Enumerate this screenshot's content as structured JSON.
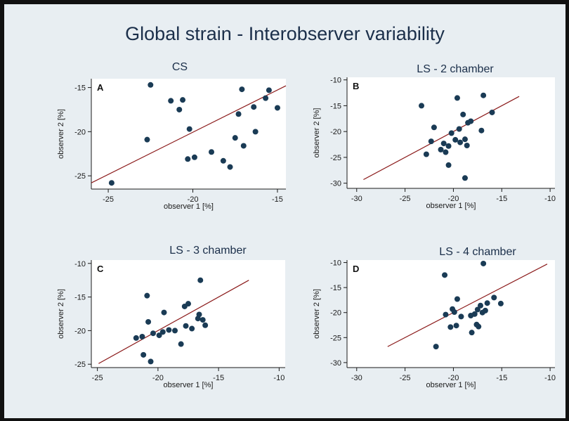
{
  "title": "Global strain - Interobserver variability",
  "colors": {
    "background": "#e8eef2",
    "plot_background": "#ffffff",
    "marker": "#1a3b55",
    "fit_line": "#8b1a1a",
    "text": "#1b2f4a"
  },
  "chart_data": [
    {
      "type": "scatter",
      "panel_letter": "A",
      "title": "CS",
      "xlabel": "observer 1 [%]",
      "ylabel": "observer 2 [%]",
      "xlim": [
        -26,
        -14.5
      ],
      "ylim": [
        -26.5,
        -14
      ],
      "xticks": [
        -25,
        -20,
        -15
      ],
      "yticks": [
        -15,
        -20,
        -25
      ],
      "grid": false,
      "points": [
        {
          "x": -24.8,
          "y": -25.8
        },
        {
          "x": -22.5,
          "y": -14.7
        },
        {
          "x": -22.7,
          "y": -20.9
        },
        {
          "x": -21.3,
          "y": -16.5
        },
        {
          "x": -20.8,
          "y": -17.5
        },
        {
          "x": -20.6,
          "y": -16.4
        },
        {
          "x": -20.2,
          "y": -19.7
        },
        {
          "x": -20.3,
          "y": -23.1
        },
        {
          "x": -19.9,
          "y": -22.9
        },
        {
          "x": -18.9,
          "y": -22.3
        },
        {
          "x": -18.2,
          "y": -23.3
        },
        {
          "x": -17.8,
          "y": -24.0
        },
        {
          "x": -17.5,
          "y": -20.7
        },
        {
          "x": -17.3,
          "y": -18.0
        },
        {
          "x": -17.1,
          "y": -15.2
        },
        {
          "x": -17.0,
          "y": -21.6
        },
        {
          "x": -16.4,
          "y": -17.2
        },
        {
          "x": -16.3,
          "y": -20.0
        },
        {
          "x": -15.7,
          "y": -16.2
        },
        {
          "x": -15.5,
          "y": -15.3
        },
        {
          "x": -15.0,
          "y": -17.3
        }
      ],
      "fit_line": {
        "x": [
          -26,
          -14.5
        ],
        "y": [
          -25.8,
          -14.8
        ]
      }
    },
    {
      "type": "scatter",
      "panel_letter": "B",
      "title": "LS - 2 chamber",
      "xlabel": "observer 1 [%]",
      "ylabel": "observer 2 [%]",
      "xlim": [
        -31,
        -9.5
      ],
      "ylim": [
        -31,
        -9.5
      ],
      "xticks": [
        -30,
        -25,
        -20,
        -15,
        -10
      ],
      "yticks": [
        -10,
        -15,
        -20,
        -25,
        -30
      ],
      "grid": false,
      "points": [
        {
          "x": -23.3,
          "y": -15.0
        },
        {
          "x": -22.3,
          "y": -21.9
        },
        {
          "x": -22.0,
          "y": -19.2
        },
        {
          "x": -22.8,
          "y": -24.4
        },
        {
          "x": -21.3,
          "y": -23.5
        },
        {
          "x": -21.0,
          "y": -22.3
        },
        {
          "x": -20.8,
          "y": -24.0
        },
        {
          "x": -20.5,
          "y": -26.5
        },
        {
          "x": -20.5,
          "y": -22.8
        },
        {
          "x": -20.2,
          "y": -20.3
        },
        {
          "x": -19.8,
          "y": -21.6
        },
        {
          "x": -19.6,
          "y": -13.5
        },
        {
          "x": -19.3,
          "y": -22.1
        },
        {
          "x": -19.4,
          "y": -19.5
        },
        {
          "x": -19.0,
          "y": -16.7
        },
        {
          "x": -18.8,
          "y": -21.5
        },
        {
          "x": -18.8,
          "y": -29.0
        },
        {
          "x": -18.5,
          "y": -18.3
        },
        {
          "x": -18.6,
          "y": -22.7
        },
        {
          "x": -18.2,
          "y": -18.0
        },
        {
          "x": -17.1,
          "y": -19.8
        },
        {
          "x": -16.9,
          "y": -13.0
        },
        {
          "x": -16.0,
          "y": -16.3
        }
      ],
      "fit_line": {
        "x": [
          -29.3,
          -13.2
        ],
        "y": [
          -29.3,
          -13.2
        ]
      }
    },
    {
      "type": "scatter",
      "panel_letter": "C",
      "title": "LS - 3 chamber",
      "xlabel": "observer 1 [%]",
      "ylabel": "observer 2 [%]",
      "xlim": [
        -25.5,
        -9.5
      ],
      "ylim": [
        -25.5,
        -9.5
      ],
      "xticks": [
        -25,
        -20,
        -15,
        -10
      ],
      "yticks": [
        -10,
        -15,
        -20,
        -25
      ],
      "grid": false,
      "points": [
        {
          "x": -21.8,
          "y": -21.1
        },
        {
          "x": -21.3,
          "y": -20.9
        },
        {
          "x": -21.2,
          "y": -23.6
        },
        {
          "x": -20.9,
          "y": -14.8
        },
        {
          "x": -20.8,
          "y": -18.7
        },
        {
          "x": -20.6,
          "y": -24.6
        },
        {
          "x": -20.4,
          "y": -20.4
        },
        {
          "x": -19.9,
          "y": -20.7
        },
        {
          "x": -19.6,
          "y": -20.2
        },
        {
          "x": -19.5,
          "y": -17.3
        },
        {
          "x": -19.1,
          "y": -19.9
        },
        {
          "x": -18.6,
          "y": -20.0
        },
        {
          "x": -18.1,
          "y": -22.0
        },
        {
          "x": -17.8,
          "y": -16.4
        },
        {
          "x": -17.7,
          "y": -19.3
        },
        {
          "x": -17.5,
          "y": -16.0
        },
        {
          "x": -17.2,
          "y": -19.7
        },
        {
          "x": -16.7,
          "y": -18.2
        },
        {
          "x": -16.6,
          "y": -17.6
        },
        {
          "x": -16.5,
          "y": -12.5
        },
        {
          "x": -16.3,
          "y": -18.4
        },
        {
          "x": -16.1,
          "y": -19.2
        }
      ],
      "fit_line": {
        "x": [
          -24.9,
          -12.5
        ],
        "y": [
          -24.9,
          -12.5
        ]
      }
    },
    {
      "type": "scatter",
      "panel_letter": "D",
      "title": "LS - 4 chamber",
      "xlabel": "observer 1 [%]",
      "ylabel": "observer 2 [%]",
      "xlim": [
        -31,
        -9.5
      ],
      "ylim": [
        -31,
        -9.5
      ],
      "xticks": [
        -30,
        -25,
        -20,
        -15,
        -10
      ],
      "yticks": [
        -10,
        -15,
        -20,
        -25,
        -30
      ],
      "grid": false,
      "points": [
        {
          "x": -21.8,
          "y": -26.8
        },
        {
          "x": -20.9,
          "y": -12.5
        },
        {
          "x": -20.8,
          "y": -20.4
        },
        {
          "x": -20.3,
          "y": -22.9
        },
        {
          "x": -20.1,
          "y": -19.3
        },
        {
          "x": -19.9,
          "y": -19.9
        },
        {
          "x": -19.7,
          "y": -22.6
        },
        {
          "x": -19.6,
          "y": -17.3
        },
        {
          "x": -19.2,
          "y": -20.8
        },
        {
          "x": -18.2,
          "y": -20.6
        },
        {
          "x": -18.1,
          "y": -24.0
        },
        {
          "x": -17.8,
          "y": -20.3
        },
        {
          "x": -17.6,
          "y": -22.4
        },
        {
          "x": -17.5,
          "y": -19.4
        },
        {
          "x": -17.4,
          "y": -22.8
        },
        {
          "x": -17.2,
          "y": -18.6
        },
        {
          "x": -17.0,
          "y": -20.0
        },
        {
          "x": -16.9,
          "y": -10.2
        },
        {
          "x": -16.7,
          "y": -19.6
        },
        {
          "x": -16.5,
          "y": -18.1
        },
        {
          "x": -15.8,
          "y": -17.0
        },
        {
          "x": -15.1,
          "y": -18.2
        }
      ],
      "fit_line": {
        "x": [
          -26.8,
          -10.3
        ],
        "y": [
          -26.8,
          -10.3
        ]
      }
    }
  ]
}
